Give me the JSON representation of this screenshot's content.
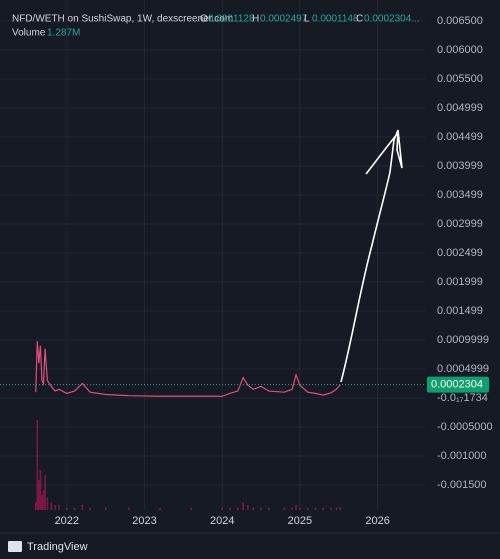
{
  "header": {
    "symbol": "NFD/WETH on SushiSwap, 1W, dexscreener.com",
    "ohlc": [
      {
        "label": "O",
        "value": "0.0001128"
      },
      {
        "label": "H",
        "value": "0.0002497"
      },
      {
        "label": "L",
        "value": "0.0001148"
      },
      {
        "label": "C",
        "value": "0.0002304..."
      }
    ],
    "volume_label": "Volume",
    "volume_value": "1.287M"
  },
  "branding": "TradingView",
  "chart_data": {
    "type": "line",
    "grid": true,
    "x": [
      2021.6,
      2021.62,
      2021.64,
      2021.66,
      2021.68,
      2021.7,
      2021.72,
      2021.75,
      2021.8,
      2021.85,
      2021.9,
      2022.0,
      2022.1,
      2022.2,
      2022.3,
      2022.5,
      2022.8,
      2023.2,
      2023.6,
      2024.0,
      2024.1,
      2024.2,
      2024.27,
      2024.33,
      2024.4,
      2024.5,
      2024.6,
      2024.8,
      2024.9,
      2024.95,
      2025.0,
      2025.1,
      2025.2,
      2025.3,
      2025.4,
      2025.47,
      2025.52
    ],
    "series": [
      {
        "color": "#e0507a",
        "values": [
          0.0001,
          0.00098,
          0.0006,
          0.0009,
          0.0003,
          0.00025,
          0.00085,
          0.0003,
          0.0002,
          0.00012,
          0.00015,
          8e-05,
          0.00012,
          0.00025,
          0.0001,
          6e-05,
          4e-05,
          3e-05,
          3e-05,
          3e-05,
          8e-05,
          0.00012,
          0.00035,
          0.00022,
          0.00015,
          0.0002,
          0.00012,
          0.0001,
          0.00015,
          0.0004,
          0.00022,
          0.0001,
          8e-05,
          5e-05,
          9e-05,
          0.00015,
          0.0002304
        ]
      }
    ],
    "volume": {
      "color": "#c2185b",
      "values": [
        3,
        36,
        12,
        16,
        6,
        8,
        14,
        5,
        3,
        2,
        2,
        1,
        1,
        2,
        1,
        1,
        1,
        1,
        1,
        1,
        1,
        1,
        3,
        2,
        1,
        1,
        1,
        1,
        1,
        2,
        1,
        1,
        1,
        1,
        1,
        1,
        1.287
      ]
    },
    "xlim": [
      2021.14,
      2026.61
    ],
    "xticks": [
      2022,
      2023,
      2024,
      2025,
      2026
    ],
    "ylim": [
      -0.0015,
      0.0065
    ],
    "yticks": [
      {
        "value": 0.0065,
        "label": "0.006500"
      },
      {
        "value": 0.006,
        "label": "0.006000"
      },
      {
        "value": 0.0055,
        "label": "0.005500"
      },
      {
        "value": 0.004999,
        "label": "0.004999"
      },
      {
        "value": 0.004499,
        "label": "0.004499"
      },
      {
        "value": 0.003999,
        "label": "0.003999"
      },
      {
        "value": 0.003499,
        "label": "0.003499"
      },
      {
        "value": 0.002999,
        "label": "0.002999"
      },
      {
        "value": 0.002499,
        "label": "0.002499"
      },
      {
        "value": 0.001999,
        "label": "0.001999"
      },
      {
        "value": 0.001499,
        "label": "0.001499"
      },
      {
        "value": 0.0009999,
        "label": "0.0009999"
      },
      {
        "value": 0.0004999,
        "label": "0.0004999"
      },
      {
        "value": -1.734e-18,
        "label": "-0.0₁₇1734"
      },
      {
        "value": -0.0005,
        "label": "-0.0005000"
      },
      {
        "value": -0.001,
        "label": "-0.001000"
      },
      {
        "value": -0.0015,
        "label": "-0.001500"
      }
    ]
  }
}
